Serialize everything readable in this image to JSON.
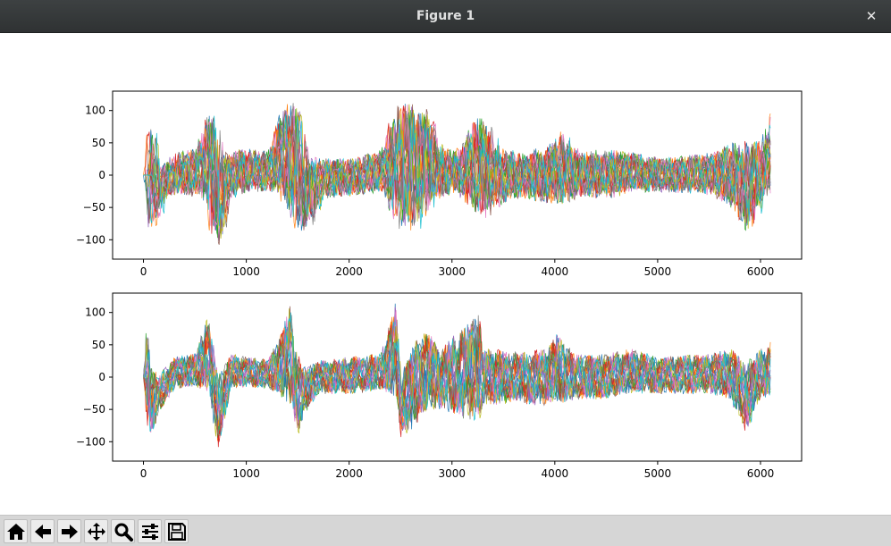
{
  "window": {
    "title": "Figure 1",
    "close_glyph": "✕"
  },
  "toolbar": {
    "buttons": [
      {
        "name": "home-icon",
        "tooltip": "Home"
      },
      {
        "name": "back-arrow-icon",
        "tooltip": "Back"
      },
      {
        "name": "forward-arrow-icon",
        "tooltip": "Forward"
      },
      {
        "name": "pan-icon",
        "tooltip": "Pan"
      },
      {
        "name": "zoom-icon",
        "tooltip": "Zoom"
      },
      {
        "name": "subplots-config-icon",
        "tooltip": "Configure subplots"
      },
      {
        "name": "save-icon",
        "tooltip": "Save"
      }
    ]
  },
  "colors": [
    "#1f77b4",
    "#ff7f0e",
    "#2ca02c",
    "#d62728",
    "#9467bd",
    "#8c564b",
    "#e377c2",
    "#7f7f7f",
    "#bcbd22",
    "#17becf"
  ],
  "chart_data": [
    {
      "type": "line",
      "title": "",
      "xlabel": "",
      "ylabel": "",
      "xlim": [
        -300,
        6400
      ],
      "ylim": [
        -130,
        130
      ],
      "xticks": [
        0,
        1000,
        2000,
        3000,
        4000,
        5000,
        6000
      ],
      "yticks": [
        -100,
        -50,
        0,
        50,
        100
      ],
      "grid": false,
      "note_series": "many overlapping traces, misaligned",
      "envelope_x": [
        0,
        30,
        80,
        150,
        300,
        500,
        580,
        650,
        720,
        800,
        1000,
        1200,
        1300,
        1400,
        1450,
        1550,
        1700,
        2000,
        2300,
        2400,
        2450,
        2600,
        2750,
        2800,
        3000,
        3250,
        3400,
        3600,
        3900,
        4000,
        4200,
        4500,
        4700,
        5000,
        5500,
        5700,
        5800,
        5850,
        6000,
        6100
      ],
      "envelope_max": [
        0,
        105,
        30,
        20,
        40,
        50,
        105,
        108,
        40,
        45,
        45,
        40,
        120,
        125,
        125,
        40,
        30,
        30,
        45,
        120,
        125,
        120,
        110,
        60,
        40,
        110,
        50,
        40,
        50,
        75,
        40,
        45,
        40,
        30,
        40,
        60,
        60,
        65,
        60,
        115
      ],
      "envelope_min": [
        0,
        -95,
        -90,
        -40,
        -35,
        -40,
        -60,
        -120,
        -118,
        -40,
        -30,
        -30,
        -40,
        -80,
        -95,
        -95,
        -40,
        -35,
        -30,
        -80,
        -95,
        -100,
        -60,
        -45,
        -30,
        -80,
        -55,
        -40,
        -50,
        -55,
        -40,
        -40,
        -30,
        -30,
        -35,
        -60,
        -95,
        -95,
        -40,
        -30
      ]
    },
    {
      "type": "line",
      "title": "",
      "xlabel": "",
      "ylabel": "",
      "xlim": [
        -300,
        6400
      ],
      "ylim": [
        -130,
        130
      ],
      "xticks": [
        0,
        1000,
        2000,
        3000,
        4000,
        5000,
        6000
      ],
      "yticks": [
        -100,
        -50,
        0,
        50,
        100
      ],
      "grid": false,
      "note_series": "many overlapping traces, aligned",
      "envelope_x": [
        0,
        30,
        80,
        150,
        300,
        500,
        620,
        720,
        850,
        1000,
        1200,
        1300,
        1420,
        1500,
        1570,
        1700,
        2000,
        2300,
        2450,
        2500,
        2600,
        2750,
        2900,
        3250,
        3300,
        3600,
        3900,
        4000,
        4200,
        4500,
        4700,
        5000,
        5500,
        5700,
        5850,
        6000,
        6100
      ],
      "envelope_max": [
        0,
        105,
        20,
        10,
        35,
        40,
        108,
        10,
        40,
        35,
        30,
        60,
        125,
        40,
        20,
        30,
        35,
        40,
        125,
        10,
        60,
        80,
        50,
        115,
        50,
        45,
        50,
        75,
        40,
        40,
        50,
        35,
        40,
        50,
        30,
        50,
        60
      ],
      "envelope_min": [
        0,
        -90,
        -95,
        -60,
        -20,
        -20,
        -30,
        -120,
        -20,
        -20,
        -20,
        -30,
        -60,
        -95,
        -60,
        -30,
        -30,
        -25,
        -40,
        -100,
        -90,
        -60,
        -55,
        -85,
        -50,
        -45,
        -50,
        -50,
        -40,
        -40,
        -30,
        -30,
        -30,
        -40,
        -95,
        -40,
        -35
      ]
    }
  ]
}
